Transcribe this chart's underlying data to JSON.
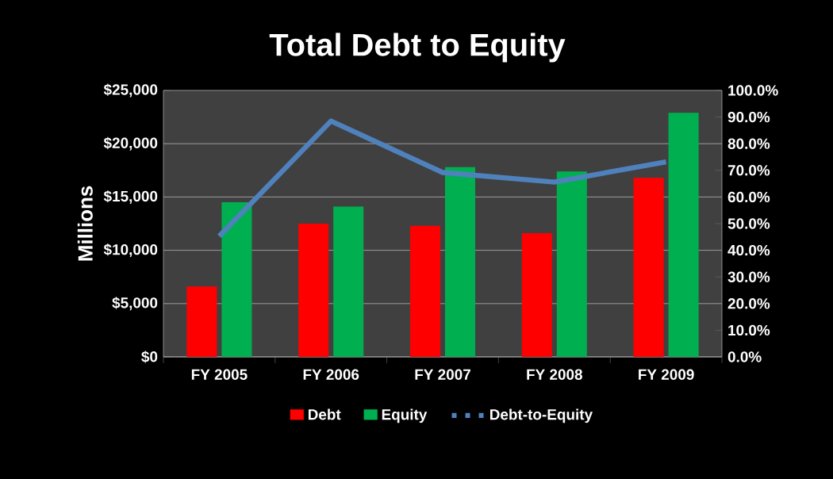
{
  "chart_data": {
    "type": "bar",
    "title": "Total Debt to Equity",
    "ylabel": "Millions",
    "categories": [
      "FY 2005",
      "FY 2006",
      "FY 2007",
      "FY 2008",
      "FY 2009"
    ],
    "series": [
      {
        "name": "Debt",
        "color": "#ff0000",
        "values": [
          6600,
          12500,
          12300,
          11600,
          16800
        ]
      },
      {
        "name": "Equity",
        "color": "#00b050",
        "values": [
          14500,
          14100,
          17800,
          17400,
          22900
        ]
      },
      {
        "name": "Debt-to-Equity",
        "type": "line",
        "axis": "y2",
        "color": "#4f81bd",
        "values": [
          45.3,
          88.5,
          69.2,
          65.6,
          73.2
        ]
      }
    ],
    "ylim": [
      0,
      25000
    ],
    "yticks": [
      {
        "value": 0,
        "label": "$0"
      },
      {
        "value": 5000,
        "label": "$5,000"
      },
      {
        "value": 10000,
        "label": "$10,000"
      },
      {
        "value": 15000,
        "label": "$15,000"
      },
      {
        "value": 20000,
        "label": "$20,000"
      },
      {
        "value": 25000,
        "label": "$25,000"
      }
    ],
    "y2lim": [
      0,
      100
    ],
    "y2ticks": [
      {
        "value": 0,
        "label": "0.0%"
      },
      {
        "value": 10,
        "label": "10.0%"
      },
      {
        "value": 20,
        "label": "20.0%"
      },
      {
        "value": 30,
        "label": "30.0%"
      },
      {
        "value": 40,
        "label": "40.0%"
      },
      {
        "value": 50,
        "label": "50.0%"
      },
      {
        "value": 60,
        "label": "60.0%"
      },
      {
        "value": 70,
        "label": "70.0%"
      },
      {
        "value": 80,
        "label": "80.0%"
      },
      {
        "value": 90,
        "label": "90.0%"
      },
      {
        "value": 100,
        "label": "100.0%"
      }
    ],
    "grid": "y",
    "legend": "bottom"
  }
}
